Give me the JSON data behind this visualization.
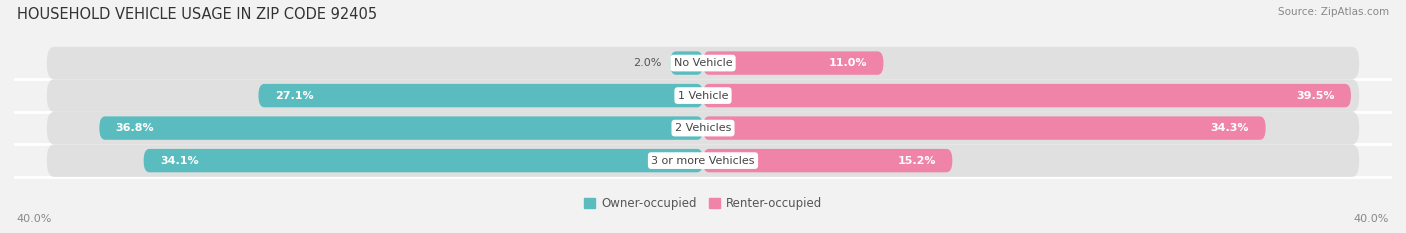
{
  "title": "HOUSEHOLD VEHICLE USAGE IN ZIP CODE 92405",
  "source": "Source: ZipAtlas.com",
  "categories": [
    "No Vehicle",
    "1 Vehicle",
    "2 Vehicles",
    "3 or more Vehicles"
  ],
  "owner_values": [
    2.0,
    27.1,
    36.8,
    34.1
  ],
  "renter_values": [
    11.0,
    39.5,
    34.3,
    15.2
  ],
  "owner_color": "#5bbcbf",
  "renter_color": "#f084a8",
  "bar_height": 0.72,
  "xlim": [
    -42,
    42
  ],
  "background_color": "#f2f2f2",
  "bar_background_color": "#e0e0e0",
  "title_fontsize": 10.5,
  "source_fontsize": 7.5,
  "label_fontsize": 8,
  "value_fontsize": 8,
  "legend_owner": "Owner-occupied",
  "legend_renter": "Renter-occupied",
  "axis_label_left": "40.0%",
  "axis_label_right": "40.0%"
}
